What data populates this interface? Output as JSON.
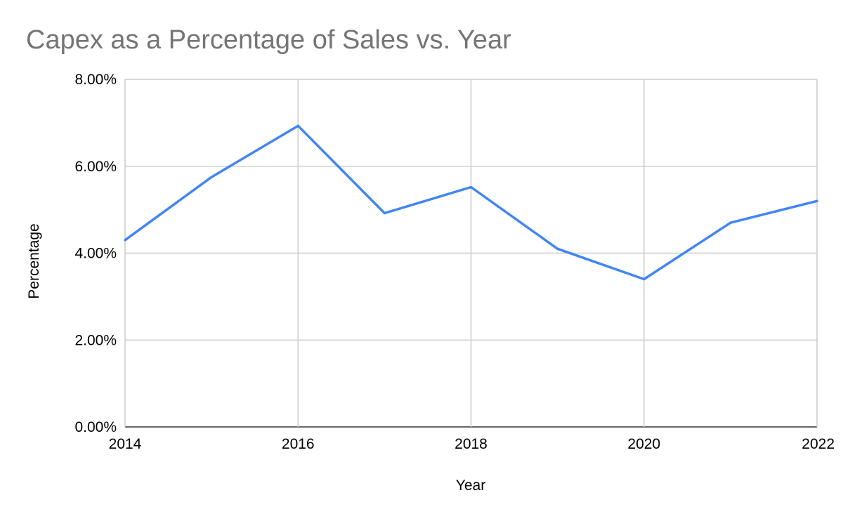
{
  "chart_data": {
    "type": "line",
    "title": "Capex as a Percentage of Sales vs. Year",
    "xlabel": "Year",
    "ylabel": "Percentage",
    "xlim": [
      2014,
      2022
    ],
    "ylim": [
      0,
      8
    ],
    "x_ticks": [
      2014,
      2016,
      2018,
      2020,
      2022
    ],
    "x_tick_labels": [
      "2014",
      "2016",
      "2018",
      "2020",
      "2022"
    ],
    "y_ticks": [
      0,
      2,
      4,
      6,
      8
    ],
    "y_tick_labels": [
      "0.00%",
      "2.00%",
      "4.00%",
      "6.00%",
      "8.00%"
    ],
    "grid": true,
    "legend": "none",
    "x": [
      2014,
      2015,
      2016,
      2017,
      2018,
      2019,
      2020,
      2021,
      2022
    ],
    "series": [
      {
        "values": [
          4.3,
          5.75,
          6.93,
          4.92,
          5.52,
          4.1,
          3.4,
          4.7,
          5.2
        ],
        "color": "#4285f4"
      }
    ]
  }
}
